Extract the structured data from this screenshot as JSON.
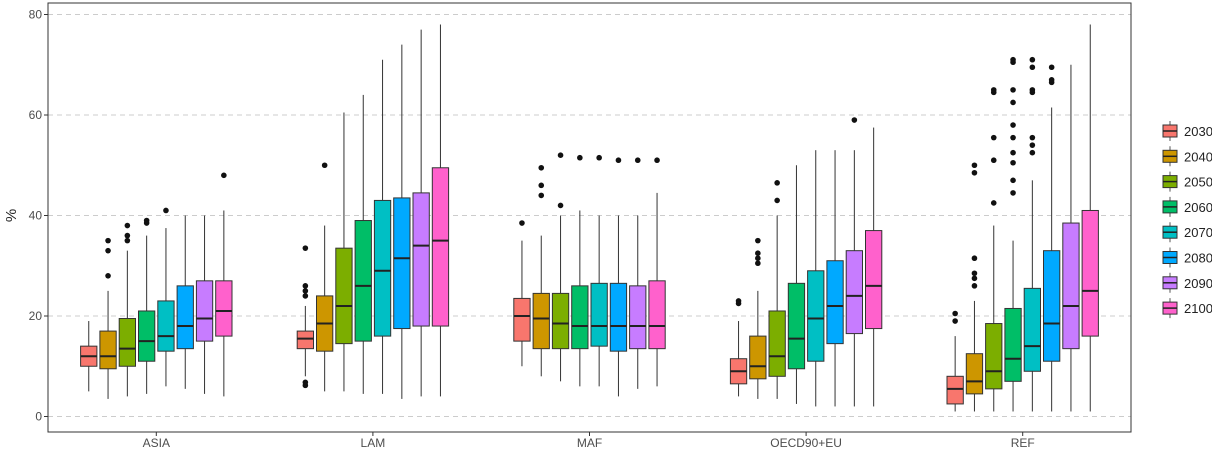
{
  "chart_data": {
    "type": "boxplot",
    "ylabel": "%",
    "ylim": [
      0,
      80
    ],
    "yticks": [
      0,
      20,
      40,
      60,
      80
    ],
    "grid": "horizontal-dashed",
    "legend": "right",
    "categories": [
      "ASIA",
      "LAM",
      "MAF",
      "OECD90+EU",
      "REF"
    ],
    "series": [
      {
        "name": "2030",
        "color": "#F8766D"
      },
      {
        "name": "2040",
        "color": "#CD9600"
      },
      {
        "name": "2050",
        "color": "#7CAE00"
      },
      {
        "name": "2060",
        "color": "#00BE67"
      },
      {
        "name": "2070",
        "color": "#00BFC4"
      },
      {
        "name": "2080",
        "color": "#00A9FF"
      },
      {
        "name": "2090",
        "color": "#C77CFF"
      },
      {
        "name": "2100",
        "color": "#FF61CC"
      }
    ],
    "boxes": [
      [
        {
          "min": 5,
          "q1": 10,
          "median": 12,
          "q3": 14,
          "max": 19,
          "outliers": []
        },
        {
          "min": 3.5,
          "q1": 9.5,
          "median": 12,
          "q3": 17,
          "max": 25,
          "outliers": [
            28,
            33,
            35
          ]
        },
        {
          "min": 4,
          "q1": 10,
          "median": 13.5,
          "q3": 19.5,
          "max": 33,
          "outliers": [
            35,
            36,
            38
          ]
        },
        {
          "min": 4.5,
          "q1": 11,
          "median": 15,
          "q3": 21,
          "max": 36,
          "outliers": [
            38.5,
            39
          ]
        },
        {
          "min": 6,
          "q1": 13,
          "median": 16,
          "q3": 23,
          "max": 37.5,
          "outliers": [
            41
          ]
        },
        {
          "min": 5.5,
          "q1": 13.5,
          "median": 18,
          "q3": 26,
          "max": 40,
          "outliers": []
        },
        {
          "min": 4.5,
          "q1": 15,
          "median": 19.5,
          "q3": 27,
          "max": 40,
          "outliers": []
        },
        {
          "min": 4,
          "q1": 16,
          "median": 21,
          "q3": 27,
          "max": 41,
          "outliers": [
            48
          ]
        }
      ],
      [
        {
          "min": 8,
          "q1": 13.5,
          "median": 15.5,
          "q3": 17,
          "max": 22,
          "outliers": [
            6.2,
            6.8,
            24,
            25,
            26,
            33.5
          ]
        },
        {
          "min": 5,
          "q1": 13,
          "median": 18.5,
          "q3": 24,
          "max": 38,
          "outliers": [
            50
          ]
        },
        {
          "min": 5,
          "q1": 14.5,
          "median": 22,
          "q3": 33.5,
          "max": 60.5,
          "outliers": []
        },
        {
          "min": 4.5,
          "q1": 15,
          "median": 26,
          "q3": 39,
          "max": 64,
          "outliers": []
        },
        {
          "min": 4.5,
          "q1": 16,
          "median": 29,
          "q3": 43,
          "max": 71,
          "outliers": []
        },
        {
          "min": 3.5,
          "q1": 17.5,
          "median": 31.5,
          "q3": 43.5,
          "max": 74,
          "outliers": []
        },
        {
          "min": 4,
          "q1": 18,
          "median": 34,
          "q3": 44.5,
          "max": 77,
          "outliers": []
        },
        {
          "min": 4,
          "q1": 18,
          "median": 35,
          "q3": 49.5,
          "max": 78,
          "outliers": []
        }
      ],
      [
        {
          "min": 10,
          "q1": 15,
          "median": 20,
          "q3": 23.5,
          "max": 35,
          "outliers": [
            38.5
          ]
        },
        {
          "min": 8,
          "q1": 13.5,
          "median": 19.5,
          "q3": 24.5,
          "max": 36,
          "outliers": [
            44,
            46,
            49.5
          ]
        },
        {
          "min": 7,
          "q1": 13.5,
          "median": 18.5,
          "q3": 24.5,
          "max": 40,
          "outliers": [
            42,
            52
          ]
        },
        {
          "min": 6,
          "q1": 13.5,
          "median": 18,
          "q3": 26,
          "max": 41,
          "outliers": [
            51.5
          ]
        },
        {
          "min": 6,
          "q1": 14,
          "median": 18,
          "q3": 26.5,
          "max": 40,
          "outliers": [
            51.5
          ]
        },
        {
          "min": 4,
          "q1": 13,
          "median": 18,
          "q3": 26.5,
          "max": 40,
          "outliers": [
            51
          ]
        },
        {
          "min": 5.5,
          "q1": 13.5,
          "median": 18,
          "q3": 26,
          "max": 40,
          "outliers": [
            51
          ]
        },
        {
          "min": 6,
          "q1": 13.5,
          "median": 18,
          "q3": 27,
          "max": 44.5,
          "outliers": [
            51
          ]
        }
      ],
      [
        {
          "min": 4,
          "q1": 6.5,
          "median": 9,
          "q3": 11.5,
          "max": 19,
          "outliers": [
            22.5,
            23
          ]
        },
        {
          "min": 3.5,
          "q1": 7.5,
          "median": 10,
          "q3": 16,
          "max": 25,
          "outliers": [
            30.5,
            31.5,
            32.5,
            35
          ]
        },
        {
          "min": 3.5,
          "q1": 8,
          "median": 12,
          "q3": 21,
          "max": 40,
          "outliers": [
            43,
            46.5
          ]
        },
        {
          "min": 2.5,
          "q1": 9.5,
          "median": 15.5,
          "q3": 26.5,
          "max": 50,
          "outliers": []
        },
        {
          "min": 2,
          "q1": 11,
          "median": 19.5,
          "q3": 29,
          "max": 53,
          "outliers": []
        },
        {
          "min": 2,
          "q1": 14.5,
          "median": 22,
          "q3": 31,
          "max": 53,
          "outliers": []
        },
        {
          "min": 2,
          "q1": 16.5,
          "median": 24,
          "q3": 33,
          "max": 53,
          "outliers": [
            59
          ]
        },
        {
          "min": 2,
          "q1": 17.5,
          "median": 26,
          "q3": 37,
          "max": 57.5,
          "outliers": []
        }
      ],
      [
        {
          "min": 1,
          "q1": 2.5,
          "median": 5.5,
          "q3": 8,
          "max": 16,
          "outliers": [
            19,
            20.5
          ]
        },
        {
          "min": 1,
          "q1": 4.5,
          "median": 7,
          "q3": 12.5,
          "max": 23,
          "outliers": [
            26,
            27.5,
            28.5,
            31.5,
            48.5,
            50
          ]
        },
        {
          "min": 1,
          "q1": 5.5,
          "median": 9,
          "q3": 18.5,
          "max": 38,
          "outliers": [
            42.5,
            51,
            55.5,
            64.5,
            65
          ]
        },
        {
          "min": 1,
          "q1": 7,
          "median": 11.5,
          "q3": 21.5,
          "max": 35,
          "outliers": [
            44.5,
            47,
            50.5,
            52.5,
            55.5,
            58,
            62.5,
            65,
            70.5,
            71
          ]
        },
        {
          "min": 1,
          "q1": 9,
          "median": 14,
          "q3": 25.5,
          "max": 47,
          "outliers": [
            52.5,
            54,
            55.5,
            64.5,
            65,
            69.5,
            71
          ]
        },
        {
          "min": 1,
          "q1": 11,
          "median": 18.5,
          "q3": 33,
          "max": 61.5,
          "outliers": [
            66.5,
            67,
            69.5
          ]
        },
        {
          "min": 1,
          "q1": 13.5,
          "median": 22,
          "q3": 38.5,
          "max": 70,
          "outliers": []
        },
        {
          "min": 1,
          "q1": 16,
          "median": 25,
          "q3": 41,
          "max": 78,
          "outliers": []
        }
      ]
    ]
  }
}
